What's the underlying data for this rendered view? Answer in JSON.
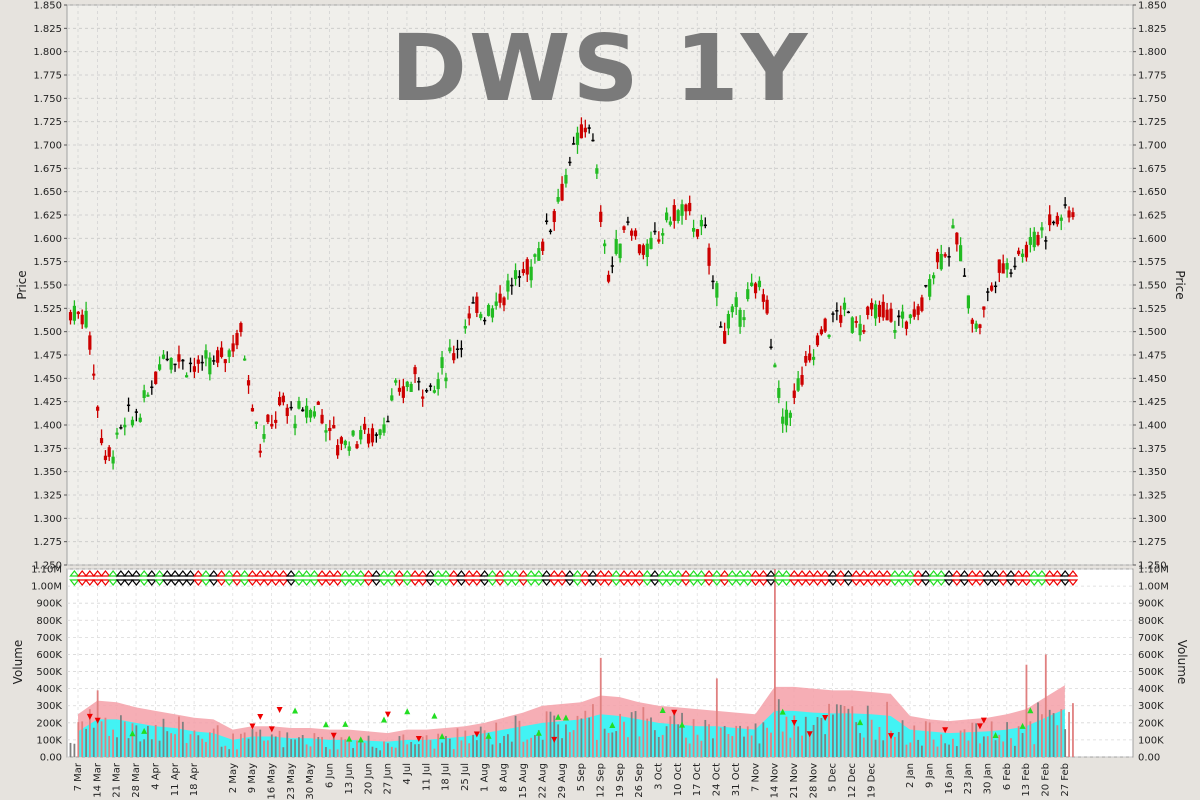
{
  "chart_data": [
    {
      "type": "ohlc",
      "title": "DWS 1Y",
      "ylabel": "Price",
      "ylim": [
        1.25,
        1.85
      ],
      "yticks": [
        "1.250",
        "1.275",
        "1.300",
        "1.325",
        "1.350",
        "1.375",
        "1.400",
        "1.425",
        "1.450",
        "1.475",
        "1.500",
        "1.525",
        "1.550",
        "1.575",
        "1.600",
        "1.625",
        "1.650",
        "1.675",
        "1.700",
        "1.725",
        "1.750",
        "1.775",
        "1.800",
        "1.825",
        "1.850"
      ],
      "grid": true,
      "colors": {
        "up": "#22bb22",
        "down": "#cc0000",
        "flat": "#000000",
        "background": "#f0efeb"
      },
      "weekly_close_approx": {
        "weeks": [
          "7 Mar",
          "14 Mar",
          "21 Mar",
          "28 Mar",
          "4 Apr",
          "11 Apr",
          "18 Apr",
          "25 Apr",
          "2 May",
          "9 May",
          "16 May",
          "23 May",
          "30 May",
          "6 Jun",
          "13 Jun",
          "20 Jun",
          "27 Jun",
          "4 Jul",
          "11 Jul",
          "18 Jul",
          "25 Jul",
          "1 Aug",
          "8 Aug",
          "15 Aug",
          "22 Aug",
          "29 Aug",
          "5 Sep",
          "12 Sep",
          "19 Sep",
          "26 Sep",
          "3 Oct",
          "10 Oct",
          "17 Oct",
          "24 Oct",
          "31 Oct",
          "7 Nov",
          "14 Nov",
          "21 Nov",
          "28 Nov",
          "5 Dec",
          "12 Dec",
          "19 Dec",
          "26 Dec",
          "2 Jan",
          "9 Jan",
          "16 Jan",
          "23 Jan",
          "30 Jan",
          "6 Feb",
          "13 Feb",
          "20 Feb",
          "27 Feb"
        ],
        "close": [
          1.52,
          1.36,
          1.4,
          1.42,
          1.48,
          1.47,
          1.46,
          1.47,
          1.5,
          1.38,
          1.42,
          1.41,
          1.42,
          1.38,
          1.39,
          1.39,
          1.43,
          1.45,
          1.44,
          1.48,
          1.52,
          1.53,
          1.55,
          1.57,
          1.62,
          1.68,
          1.73,
          1.56,
          1.62,
          1.58,
          1.62,
          1.63,
          1.6,
          1.5,
          1.53,
          1.55,
          1.4,
          1.45,
          1.5,
          1.52,
          1.51,
          1.52,
          1.51,
          1.52,
          1.58,
          1.6,
          1.5,
          1.56,
          1.58,
          1.6,
          1.62,
          1.63
        ]
      }
    },
    {
      "type": "bar",
      "ylabel": "Volume",
      "ylim": [
        0,
        1100000
      ],
      "yticks": [
        "0.00",
        "100K",
        "200K",
        "300K",
        "400K",
        "500K",
        "600K",
        "700K",
        "800K",
        "900K",
        "1.00M",
        "1.10M"
      ],
      "grid": true,
      "series_names": [],
      "colors": {
        "bar": "#808080",
        "bar_low": "#e08080",
        "band_outer": "#f5a0a8",
        "band_inner": "#22ffff",
        "up_marker": "#22dd22",
        "down_marker": "#ee0000"
      },
      "volume_notable": [
        {
          "week": "14 Mar",
          "value": 390000
        },
        {
          "week": "12 Sep",
          "value": 580000
        },
        {
          "week": "24 Oct",
          "value": 460000
        },
        {
          "week": "14 Nov",
          "value": 1100000
        },
        {
          "week": "13 Feb",
          "value": 540000
        },
        {
          "week": "20 Feb",
          "value": 600000
        }
      ],
      "band_avg_approx": {
        "weeks": [
          "7 Mar",
          "14 Mar",
          "21 Mar",
          "28 Mar",
          "4 Apr",
          "11 Apr",
          "18 Apr",
          "25 Apr",
          "2 May",
          "9 May",
          "16 May",
          "23 May",
          "30 May",
          "6 Jun",
          "13 Jun",
          "20 Jun",
          "27 Jun",
          "4 Jul",
          "11 Jul",
          "18 Jul",
          "25 Jul",
          "1 Aug",
          "8 Aug",
          "15 Aug",
          "22 Aug",
          "29 Aug",
          "5 Sep",
          "12 Sep",
          "19 Sep",
          "26 Sep",
          "3 Oct",
          "10 Oct",
          "17 Oct",
          "24 Oct",
          "31 Oct",
          "7 Nov",
          "14 Nov",
          "21 Nov",
          "28 Nov",
          "5 Dec",
          "12 Dec",
          "19 Dec",
          "26 Dec",
          "2 Jan",
          "9 Jan",
          "16 Jan",
          "23 Jan",
          "30 Jan",
          "6 Feb",
          "13 Feb",
          "20 Feb",
          "27 Feb"
        ],
        "upper": [
          250000,
          330000,
          320000,
          290000,
          270000,
          250000,
          230000,
          220000,
          160000,
          180000,
          180000,
          170000,
          170000,
          160000,
          160000,
          150000,
          140000,
          160000,
          160000,
          170000,
          180000,
          200000,
          230000,
          260000,
          300000,
          310000,
          320000,
          360000,
          350000,
          320000,
          300000,
          290000,
          280000,
          270000,
          260000,
          250000,
          410000,
          410000,
          400000,
          390000,
          390000,
          380000,
          370000,
          240000,
          220000,
          210000,
          220000,
          230000,
          250000,
          280000,
          350000,
          420000
        ],
        "lower": [
          150000,
          220000,
          220000,
          200000,
          180000,
          170000,
          150000,
          140000,
          100000,
          120000,
          120000,
          110000,
          110000,
          100000,
          100000,
          95000,
          90000,
          100000,
          100000,
          110000,
          120000,
          140000,
          160000,
          180000,
          200000,
          210000,
          220000,
          250000,
          240000,
          220000,
          200000,
          190000,
          180000,
          180000,
          170000,
          160000,
          270000,
          270000,
          260000,
          255000,
          255000,
          250000,
          240000,
          160000,
          150000,
          140000,
          145000,
          150000,
          160000,
          180000,
          230000,
          280000
        ]
      }
    }
  ],
  "x_axis": {
    "labels": [
      "7 Mar",
      "14 Mar",
      "21 Mar",
      "28 Mar",
      "4 Apr",
      "11 Apr",
      "18 Apr",
      "2 May",
      "9 May",
      "16 May",
      "23 May",
      "30 May",
      "6 Jun",
      "13 Jun",
      "20 Jun",
      "27 Jun",
      "4 Jul",
      "11 Jul",
      "18 Jul",
      "25 Jul",
      "1 Aug",
      "8 Aug",
      "15 Aug",
      "22 Aug",
      "29 Aug",
      "5 Sep",
      "12 Sep",
      "19 Sep",
      "26 Sep",
      "3 Oct",
      "10 Oct",
      "17 Oct",
      "24 Oct",
      "31 Oct",
      "7 Nov",
      "14 Nov",
      "21 Nov",
      "28 Nov",
      "5 Dec",
      "12 Dec",
      "19 Dec",
      "2 Jan",
      "9 Jan",
      "16 Jan",
      "23 Jan",
      "30 Jan",
      "6 Feb",
      "13 Feb",
      "20 Feb",
      "27 Feb"
    ]
  }
}
